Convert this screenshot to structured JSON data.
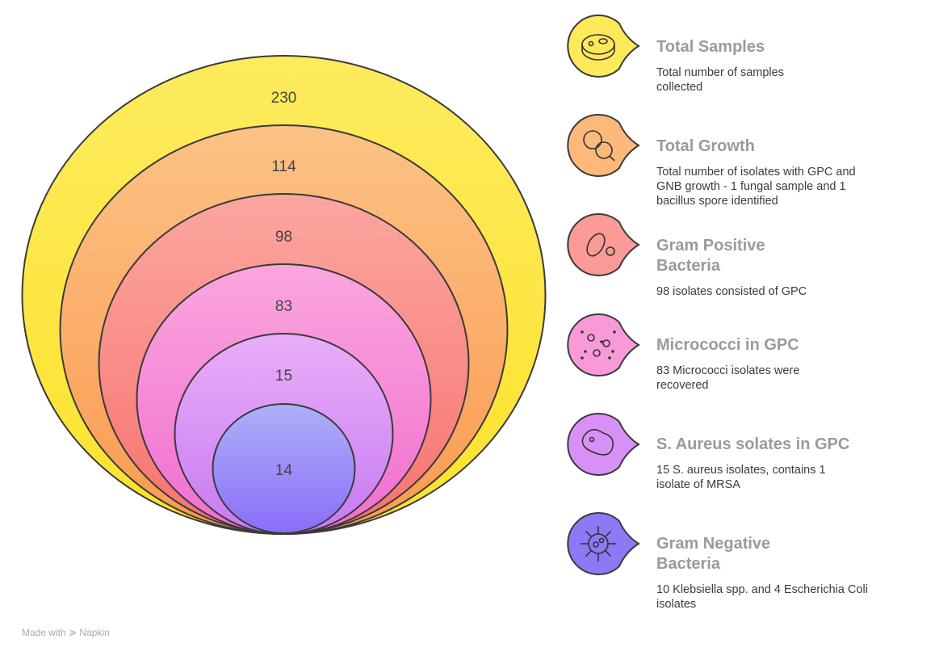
{
  "rings": [
    {
      "value": "230",
      "colors": [
        "#fdeb5e",
        "#fde22c"
      ]
    },
    {
      "value": "114",
      "colors": [
        "#fcc285",
        "#fb9a50"
      ]
    },
    {
      "value": "98",
      "colors": [
        "#fca6a0",
        "#f8726e"
      ]
    },
    {
      "value": "83",
      "colors": [
        "#fba6de",
        "#f06ecf"
      ]
    },
    {
      "value": "15",
      "colors": [
        "#e9aef8",
        "#c77af2"
      ]
    },
    {
      "value": "14",
      "colors": [
        "#aeb0f8",
        "#8a6ef8"
      ]
    }
  ],
  "items": [
    {
      "icon": "petri-dish-icon",
      "color": "#fde95a",
      "title": "Total Samples",
      "desc": "Total number of samples collected"
    },
    {
      "icon": "bacteria-magnifier-icon",
      "color": "#fcb97a",
      "title": "Total Growth",
      "desc": "Total number of isolates with GPC and GNB growth - 1 fungal sample and 1 bacillus spore identified"
    },
    {
      "icon": "bacteria-icon",
      "color": "#fb9a96",
      "title": "Gram Positive Bacteria",
      "desc": "98 isolates consisted of GPC"
    },
    {
      "icon": "micrococci-icon",
      "color": "#f99ad8",
      "title": "Micrococci in GPC",
      "desc": "83 Micrococci isolates were recovered"
    },
    {
      "icon": "cell-icon",
      "color": "#d890f6",
      "title": "S. Aureus solates in GPC",
      "desc": "15 S. aureus isolates, contains 1 isolate of MRSA"
    },
    {
      "icon": "virus-icon",
      "color": "#8e78f6",
      "title": "Gram Negative Bacteria",
      "desc": "10 Klebsiella spp. and 4 Escherichia Coli isolates"
    }
  ],
  "footer": "Made with ≽ Napkin"
}
